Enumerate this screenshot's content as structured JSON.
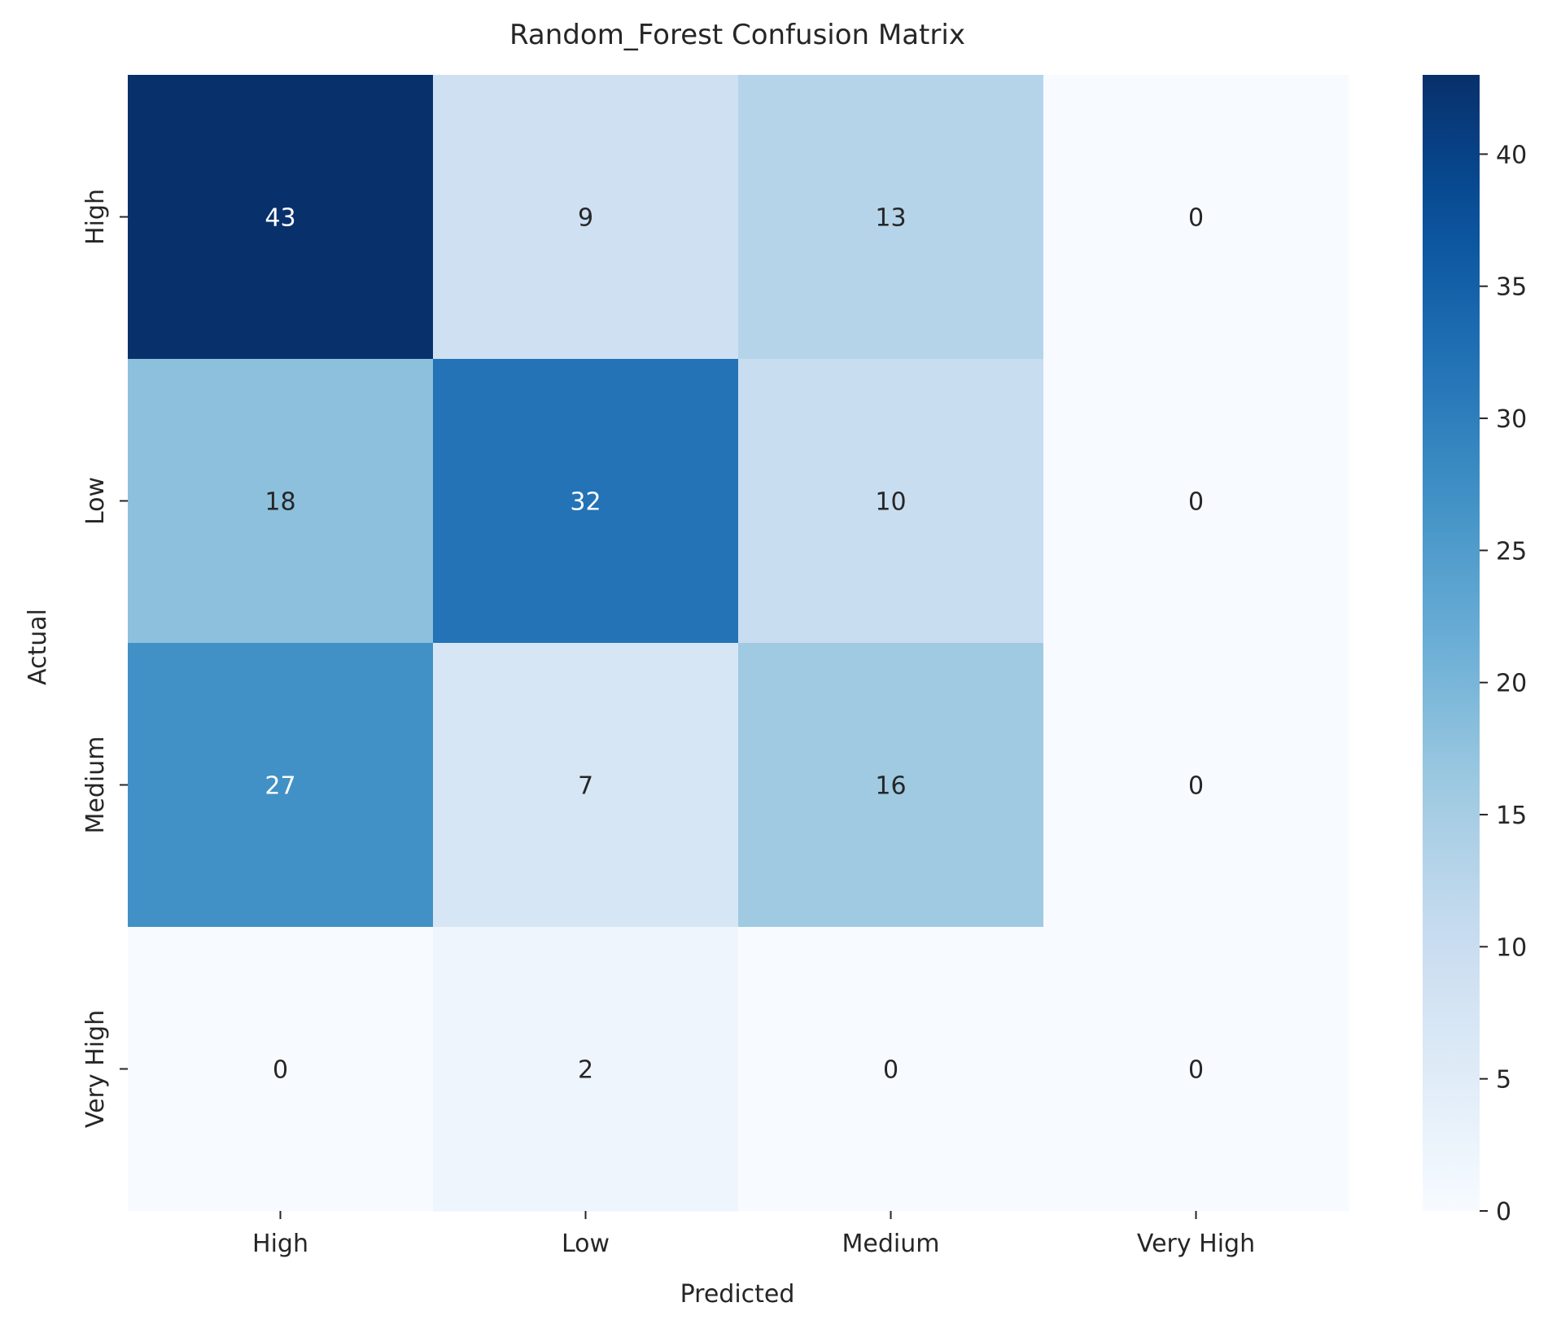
{
  "chart_data": {
    "type": "heatmap",
    "title": "Random_Forest Confusion Matrix",
    "xlabel": "Predicted",
    "ylabel": "Actual",
    "x_categories": [
      "High",
      "Low",
      "Medium",
      "Very High"
    ],
    "y_categories": [
      "High",
      "Low",
      "Medium",
      "Very High"
    ],
    "values": [
      [
        43,
        9,
        13,
        0
      ],
      [
        18,
        32,
        10,
        0
      ],
      [
        27,
        7,
        16,
        0
      ],
      [
        0,
        2,
        0,
        0
      ]
    ],
    "colorbar": {
      "min": 0,
      "max": 43,
      "ticks": [
        0,
        5,
        10,
        15,
        20,
        25,
        30,
        35,
        40
      ]
    },
    "colormap": "Blues",
    "colors": {
      "low": "#f7fbff",
      "high": "#08306b",
      "text_dark": "#262626",
      "text_light": "#ffffff"
    },
    "annotations": true,
    "grid": false
  }
}
